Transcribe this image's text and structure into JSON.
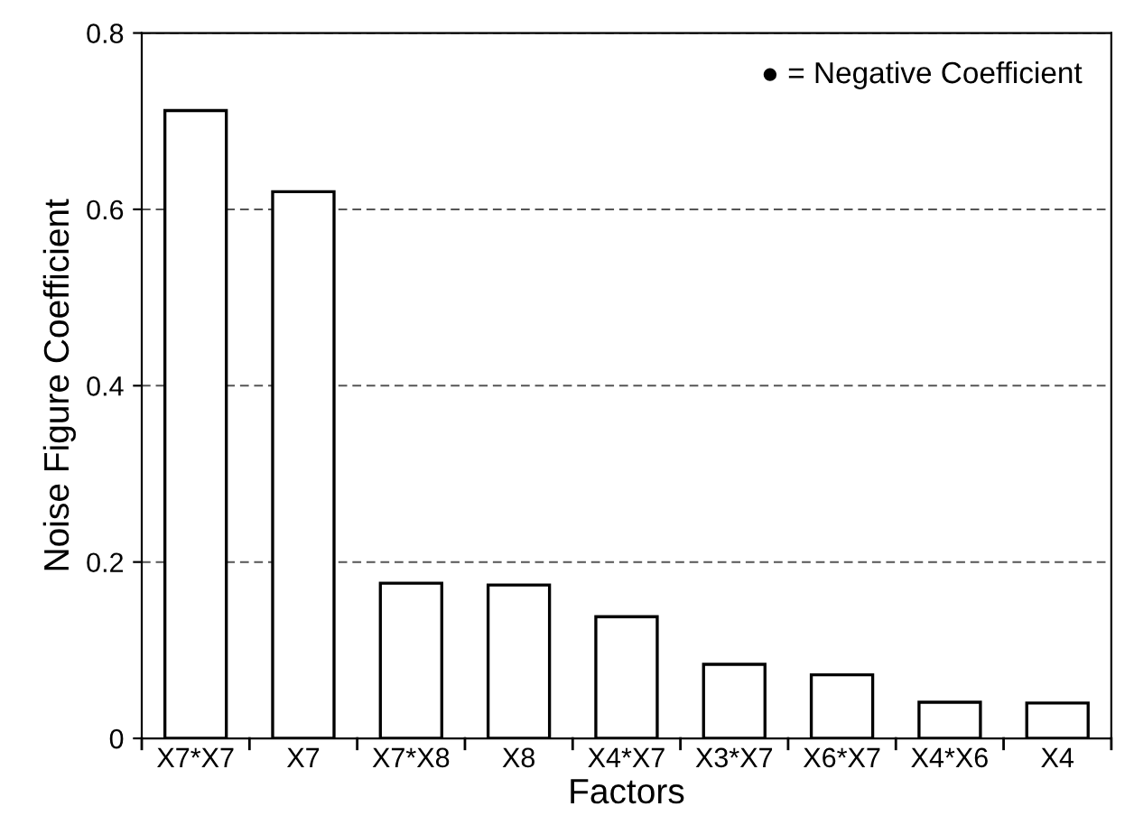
{
  "chart_data": {
    "type": "bar",
    "xlabel": "Factors",
    "ylabel": "Noise Figure Coefficient",
    "categories": [
      "X7*X7",
      "X7",
      "X7*X8",
      "X8",
      "X4*X7",
      "X3*X7",
      "X6*X7",
      "X4*X6",
      "X4"
    ],
    "values": [
      0.712,
      0.62,
      0.176,
      0.174,
      0.138,
      0.084,
      0.072,
      0.041,
      0.04
    ],
    "color": "#ffffff",
    "ylim": [
      0,
      0.8
    ],
    "yticks": [
      0,
      0.2,
      0.4,
      0.6,
      0.8
    ],
    "grid": "y",
    "annotations": [
      "● = Negative Coefficient"
    ]
  }
}
